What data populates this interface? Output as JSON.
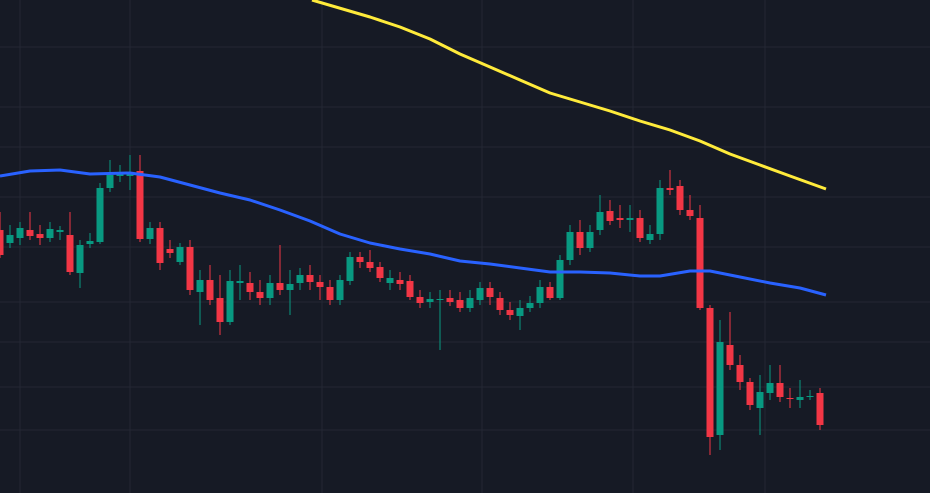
{
  "chart_data": {
    "type": "candlestick",
    "up_color": "#089981",
    "down_color": "#f23645",
    "xlim": [
      0,
      93
    ],
    "ylim": [
      0,
      493
    ],
    "open": [
      263,
      250,
      255,
      263,
      259,
      255,
      261,
      258,
      220,
      249,
      251,
      305,
      317,
      317,
      322,
      254,
      265,
      244,
      231,
      246,
      201,
      213,
      195,
      171,
      210,
      210,
      201,
      195,
      210,
      203,
      210,
      218,
      211,
      206,
      193,
      212,
      236,
      231,
      226,
      210,
      213,
      212,
      196,
      191,
      193,
      195,
      193,
      185,
      193,
      205,
      195,
      183,
      177,
      185,
      190,
      206,
      195,
      233,
      261,
      245,
      263,
      282,
      275,
      273,
      275,
      253,
      259,
      305,
      307,
      283,
      275,
      185,
      58,
      148,
      128,
      111,
      85,
      100,
      110,
      95,
      93,
      96,
      100
    ],
    "high": [
      281,
      268,
      271,
      281,
      268,
      271,
      267,
      281,
      253,
      260,
      310,
      333,
      328,
      338,
      338,
      271,
      271,
      253,
      250,
      253,
      223,
      228,
      218,
      223,
      228,
      221,
      213,
      218,
      248,
      223,
      225,
      228,
      218,
      213,
      218,
      241,
      241,
      243,
      231,
      223,
      221,
      218,
      203,
      201,
      203,
      203,
      201,
      203,
      211,
      211,
      201,
      191,
      193,
      197,
      213,
      211,
      238,
      268,
      273,
      268,
      298,
      293,
      288,
      288,
      283,
      268,
      313,
      323,
      313,
      298,
      288,
      188,
      173,
      181,
      138,
      115,
      118,
      128,
      128,
      105,
      113,
      103,
      105
    ],
    "low": [
      235,
      245,
      248,
      253,
      248,
      251,
      253,
      218,
      205,
      245,
      249,
      301,
      311,
      303,
      251,
      249,
      223,
      235,
      228,
      198,
      168,
      188,
      158,
      168,
      193,
      193,
      188,
      188,
      198,
      178,
      203,
      203,
      193,
      188,
      188,
      208,
      225,
      221,
      211,
      203,
      203,
      193,
      185,
      185,
      143,
      187,
      181,
      181,
      188,
      188,
      178,
      173,
      163,
      181,
      185,
      193,
      193,
      228,
      238,
      241,
      258,
      268,
      265,
      261,
      251,
      249,
      253,
      298,
      278,
      273,
      183,
      38,
      43,
      123,
      103,
      83,
      58,
      93,
      91,
      85,
      85,
      93,
      63
    ],
    "close": [
      238,
      258,
      265,
      257,
      255,
      264,
      263,
      221,
      248,
      252,
      305,
      318,
      319,
      321,
      254,
      265,
      230,
      240,
      246,
      203,
      213,
      193,
      171,
      212,
      212,
      201,
      195,
      210,
      203,
      209,
      218,
      211,
      206,
      193,
      213,
      236,
      231,
      225,
      215,
      215,
      209,
      196,
      190,
      194,
      194,
      191,
      185,
      195,
      205,
      196,
      183,
      178,
      185,
      190,
      206,
      195,
      233,
      261,
      245,
      261,
      281,
      272,
      273,
      275,
      255,
      259,
      305,
      303,
      283,
      277,
      185,
      56,
      151,
      128,
      111,
      88,
      101,
      110,
      96,
      95,
      96,
      97,
      68
    ],
    "series": [
      {
        "color": "#2962ff",
        "x": [
          0,
          3,
          6,
          9,
          13,
          16,
          19,
          22,
          25,
          28,
          31,
          34,
          37,
          40,
          43,
          46,
          49,
          52,
          55,
          58,
          61,
          64,
          66,
          69,
          71,
          74,
          77,
          80,
          82.6
        ],
        "values": [
          317,
          322,
          323,
          319,
          320,
          316,
          308,
          300,
          293,
          283,
          272,
          259,
          250,
          244,
          239,
          232,
          229,
          225,
          221,
          221,
          220,
          217,
          217,
          222,
          222,
          216,
          210,
          205,
          198
        ]
      },
      {
        "color": "#ffeb3b",
        "x": [
          31.2,
          37,
          40,
          43,
          46,
          49,
          52,
          55,
          58,
          61,
          64,
          67,
          70,
          73,
          76,
          79,
          82.6
        ],
        "values": [
          493,
          476,
          466,
          454,
          439,
          426,
          413,
          400,
          391,
          382,
          372,
          363,
          352,
          339,
          328,
          317,
          304
        ]
      }
    ]
  }
}
